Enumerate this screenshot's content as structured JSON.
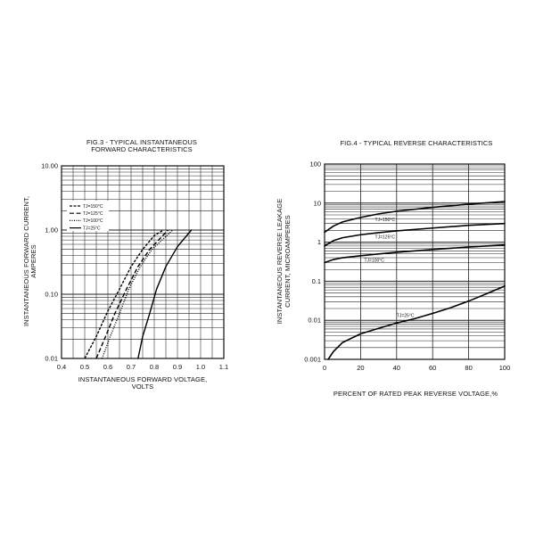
{
  "chart_data": [
    {
      "id": "fig3",
      "type": "line",
      "title": "FIG.3 - TYPICAL INSTANTANEOUS",
      "subtitle": "FORWARD CHARACTERISTICS",
      "xlabel": "INSTANTANEOUS FORWARD VOLTAGE,",
      "xlabel2": "VOLTS",
      "ylabel": "INSTANTANEOUS FORWARD CURRENT,",
      "ylabel2": "AMPERES",
      "xlim": [
        0.4,
        1.1
      ],
      "ylim": [
        0.01,
        10
      ],
      "yscale": "log",
      "grid": true,
      "legend_position": "top-left",
      "x_ticks": [
        0.4,
        0.5,
        0.6,
        0.7,
        0.8,
        0.9,
        1.0,
        1.1
      ],
      "x_tick_labels": [
        "0.4",
        "0.5",
        "0.6",
        "0.7",
        "0.8",
        "0.9",
        "1.0",
        "1.1"
      ],
      "y_ticks": [
        0.01,
        0.1,
        1,
        10
      ],
      "y_tick_labels": [
        "0.01",
        "0.10",
        "1.00",
        "10.00"
      ],
      "series": [
        {
          "name": "TJ=150°C",
          "style": "dash-fine",
          "x": [
            0.5,
            0.55,
            0.6,
            0.65,
            0.7,
            0.75,
            0.8,
            0.84
          ],
          "y": [
            0.01,
            0.022,
            0.055,
            0.12,
            0.27,
            0.5,
            0.82,
            1.0
          ]
        },
        {
          "name": "TJ=125°C",
          "style": "dash-coarse",
          "x": [
            0.55,
            0.59,
            0.63,
            0.68,
            0.73,
            0.78,
            0.86
          ],
          "y": [
            0.01,
            0.022,
            0.05,
            0.12,
            0.27,
            0.5,
            1.0
          ]
        },
        {
          "name": "TJ=100°C",
          "style": "dotted",
          "x": [
            0.575,
            0.61,
            0.65,
            0.69,
            0.74,
            0.79,
            0.88
          ],
          "y": [
            0.01,
            0.022,
            0.05,
            0.12,
            0.27,
            0.5,
            1.0
          ]
        },
        {
          "name": "TJ=25°C",
          "style": "solid",
          "x": [
            0.73,
            0.75,
            0.78,
            0.81,
            0.85,
            0.9,
            0.96
          ],
          "y": [
            0.01,
            0.022,
            0.05,
            0.12,
            0.27,
            0.55,
            1.0
          ]
        }
      ]
    },
    {
      "id": "fig4",
      "type": "line",
      "title": "FIG.4 - TYPICAL REVERSE CHARACTERISTICS",
      "xlabel": "PERCENT OF RATED PEAK REVERSE VOLTAGE,%",
      "ylabel": "INSTANTANEOUS REVERSE LEAKAGE",
      "ylabel2": "CURRENT, MICROAMPERES",
      "xlim": [
        0,
        100
      ],
      "ylim": [
        0.001,
        100
      ],
      "yscale": "log",
      "grid": true,
      "x_ticks": [
        0,
        20,
        40,
        60,
        80,
        100
      ],
      "x_tick_labels": [
        "0",
        "20",
        "40",
        "60",
        "80",
        "100"
      ],
      "y_ticks": [
        0.001,
        0.01,
        0.1,
        1,
        10,
        100
      ],
      "y_tick_labels": [
        "0.001",
        "0.01",
        "0.1",
        "1",
        "10",
        "100"
      ],
      "series": [
        {
          "name": "TJ=150°C",
          "label_at": [
            28,
            3.5
          ],
          "x": [
            0,
            5,
            10,
            20,
            30,
            40,
            60,
            80,
            100
          ],
          "y": [
            1.8,
            2.6,
            3.3,
            4.3,
            5.3,
            6.2,
            7.8,
            9.4,
            11.0
          ]
        },
        {
          "name": "TJ=125°C",
          "label_at": [
            28,
            1.25
          ],
          "x": [
            0,
            5,
            10,
            20,
            30,
            40,
            60,
            80,
            100
          ],
          "y": [
            0.8,
            1.1,
            1.3,
            1.55,
            1.75,
            1.95,
            2.3,
            2.7,
            3.0
          ]
        },
        {
          "name": "TJ=100°C",
          "label_at": [
            22,
            0.32
          ],
          "x": [
            0,
            5,
            10,
            20,
            30,
            40,
            60,
            80,
            100
          ],
          "y": [
            0.3,
            0.36,
            0.4,
            0.45,
            0.5,
            0.55,
            0.65,
            0.75,
            0.85
          ]
        },
        {
          "name": "TJ=25°C",
          "label_at": [
            40,
            0.012
          ],
          "x": [
            2,
            5,
            10,
            20,
            30,
            40,
            50,
            60,
            70,
            80,
            90,
            100
          ],
          "y": [
            0.001,
            0.0016,
            0.0027,
            0.0045,
            0.0062,
            0.0085,
            0.011,
            0.015,
            0.021,
            0.031,
            0.048,
            0.075
          ]
        }
      ]
    }
  ]
}
